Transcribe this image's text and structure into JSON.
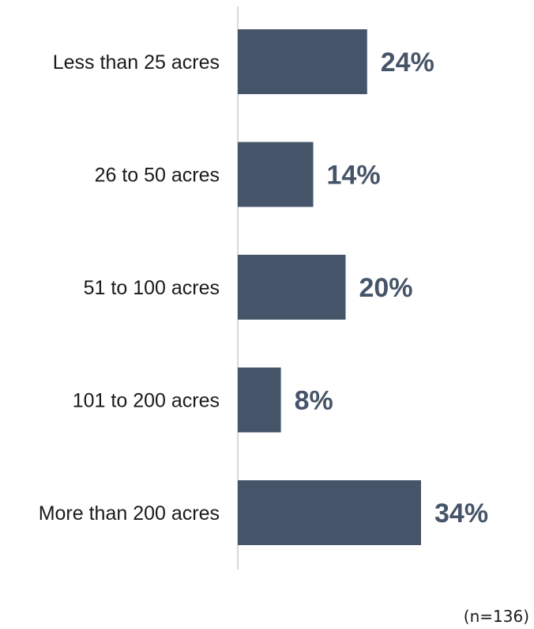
{
  "chart_data": {
    "type": "bar",
    "orientation": "horizontal",
    "categories": [
      "Less than 25 acres",
      "26 to 50 acres",
      "51 to 100 acres",
      "101 to 200 acres",
      "More than 200 acres"
    ],
    "values": [
      24,
      14,
      20,
      8,
      34
    ],
    "data_labels": [
      "24%",
      "14%",
      "20%",
      "8%",
      "34%"
    ],
    "unit": "%",
    "xlim": [
      0,
      50
    ],
    "grid": false,
    "legend": "none",
    "title": "",
    "xlabel": "",
    "ylabel": "",
    "note": "(n=136)"
  },
  "colors": {
    "bar": "#455468",
    "value_label": "#455468",
    "axis": "#d9d9d9",
    "text": "#1a1a1a"
  }
}
